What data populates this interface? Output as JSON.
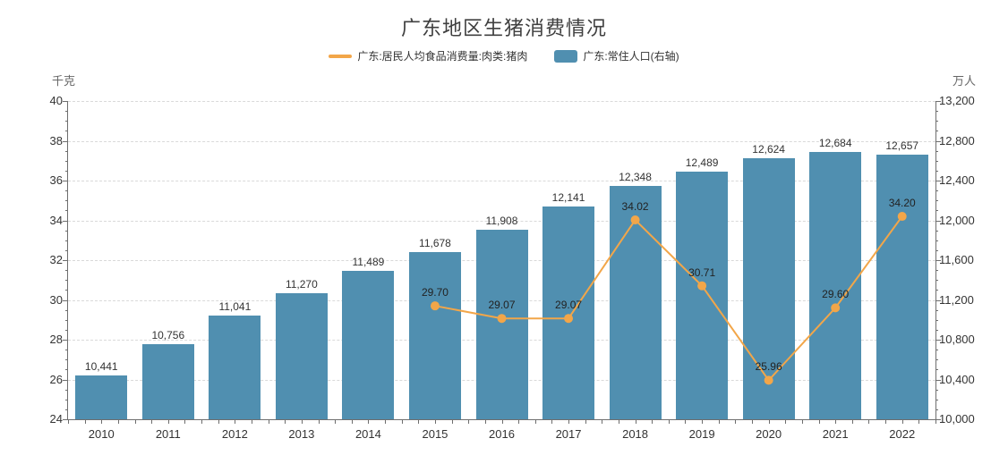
{
  "title": "广东地区生猪消费情况",
  "legend": {
    "items": [
      {
        "label": "广东:居民人均食品消费量:肉类:猪肉",
        "type": "line",
        "color": "#F2A649"
      },
      {
        "label": "广东:常住人口(右轴)",
        "type": "bar",
        "color": "#508FB0"
      }
    ]
  },
  "chart_data": {
    "type": "bar",
    "title": "广东地区生猪消费情况",
    "categories": [
      "2010",
      "2011",
      "2012",
      "2013",
      "2014",
      "2015",
      "2016",
      "2017",
      "2018",
      "2019",
      "2020",
      "2021",
      "2022"
    ],
    "series": [
      {
        "name": "广东:常住人口(右轴)",
        "type": "bar",
        "axis": "right",
        "color": "#508FB0",
        "values": [
          10441,
          10756,
          11041,
          11270,
          11489,
          11678,
          11908,
          12141,
          12348,
          12489,
          12624,
          12684,
          12657
        ]
      },
      {
        "name": "广东:居民人均食品消费量:肉类:猪肉",
        "type": "line",
        "axis": "left",
        "color": "#F2A649",
        "values": [
          null,
          null,
          null,
          null,
          null,
          29.7,
          29.07,
          29.07,
          34.02,
          30.71,
          25.96,
          29.6,
          34.2
        ]
      }
    ],
    "left_axis": {
      "unit": "千克",
      "min": 24,
      "max": 40,
      "step": 2,
      "minor_step": 0.5
    },
    "right_axis": {
      "unit": "万人",
      "min": 10000,
      "max": 13200,
      "step": 400,
      "minor_step": 100
    },
    "grid": "dashed horizontal gridlines at major ticks",
    "legend_position": "top"
  }
}
